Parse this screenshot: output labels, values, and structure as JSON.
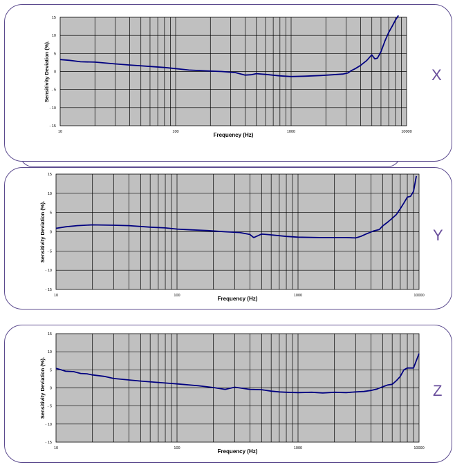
{
  "colors": {
    "panel_border": "#5b4a8e",
    "plot_bg": "#c0c0c0",
    "curve": "#000080",
    "letter": "#6a4f9c"
  },
  "chart_data": [
    {
      "type": "line",
      "panel_label": "X",
      "xlabel": "Frequency (Hz)",
      "ylabel": "Sensitivity Deviation (%).",
      "xscale": "log",
      "xlim": [
        10,
        10000
      ],
      "ylim": [
        -15,
        15
      ],
      "x_ticks": [
        "10",
        "100",
        "1000",
        "10000"
      ],
      "y_ticks": [
        "15",
        "10",
        "5",
        "0",
        "- 5",
        "- 10",
        "- 15"
      ],
      "grid": true,
      "series": [
        {
          "x": [
            10,
            12,
            15,
            20,
            30,
            40,
            60,
            80,
            100,
            130,
            180,
            250,
            330,
            400,
            450,
            500,
            600,
            800,
            1000,
            1300,
            1800,
            2300,
            2800,
            3100,
            3300,
            3600,
            4000,
            4500,
            5000,
            5300,
            5600,
            6000,
            6500,
            7000,
            7500,
            8000,
            8500
          ],
          "y": [
            3.3,
            3.1,
            2.7,
            2.6,
            2.1,
            1.8,
            1.4,
            1.1,
            0.8,
            0.4,
            0.2,
            0.0,
            -0.3,
            -1.0,
            -0.9,
            -0.6,
            -0.8,
            -1.2,
            -1.4,
            -1.3,
            -1.1,
            -0.9,
            -0.7,
            -0.4,
            0.2,
            0.8,
            1.7,
            3.0,
            4.6,
            3.5,
            3.7,
            5.5,
            8.5,
            10.8,
            12.5,
            14.2,
            15.5
          ]
        }
      ]
    },
    {
      "type": "line",
      "panel_label": "Y",
      "xlabel": "Frequency (Hz)",
      "ylabel": "Sensitivity Deviation (%).",
      "xscale": "log",
      "xlim": [
        10,
        10000
      ],
      "ylim": [
        -15,
        15
      ],
      "x_ticks": [
        "10",
        "100",
        "1000",
        "10000"
      ],
      "y_ticks": [
        "15",
        "10",
        "5",
        "0",
        "- 5",
        "- 10",
        "- 15"
      ],
      "grid": true,
      "series": [
        {
          "x": [
            10,
            12,
            15,
            20,
            30,
            40,
            60,
            80,
            100,
            130,
            180,
            250,
            330,
            400,
            430,
            500,
            600,
            800,
            1000,
            1500,
            2000,
            2500,
            3000,
            3300,
            3700,
            4200,
            4700,
            5000,
            5500,
            6000,
            6500,
            7000,
            7500,
            8000,
            8500,
            9000,
            9500
          ],
          "y": [
            0.9,
            1.3,
            1.6,
            1.8,
            1.7,
            1.6,
            1.2,
            1.0,
            0.7,
            0.5,
            0.3,
            0.0,
            -0.2,
            -0.7,
            -1.5,
            -0.6,
            -0.8,
            -1.2,
            -1.4,
            -1.5,
            -1.5,
            -1.5,
            -1.6,
            -1.2,
            -0.5,
            0.2,
            0.6,
            1.5,
            2.5,
            3.5,
            4.5,
            6.0,
            7.5,
            9.0,
            9.2,
            10.5,
            14.5
          ]
        }
      ]
    },
    {
      "type": "line",
      "panel_label": "Z",
      "xlabel": "Frequency (Hz)",
      "ylabel": "Sensitivity Deviation (%).",
      "xscale": "log",
      "xlim": [
        10,
        10000
      ],
      "ylim": [
        -15,
        15
      ],
      "x_ticks": [
        "10",
        "100",
        "1000",
        "10000"
      ],
      "y_ticks": [
        "15",
        "10",
        "5",
        "0",
        "- 5",
        "- 10",
        "- 15"
      ],
      "grid": true,
      "series": [
        {
          "x": [
            10,
            11,
            12,
            14,
            16,
            18,
            20,
            25,
            30,
            40,
            50,
            70,
            100,
            150,
            200,
            250,
            300,
            400,
            500,
            600,
            700,
            800,
            1000,
            1300,
            1600,
            2000,
            2500,
            3000,
            3500,
            4000,
            4500,
            5000,
            5500,
            6000,
            6500,
            7000,
            7500,
            8000,
            9000,
            10000
          ],
          "y": [
            5.4,
            5.0,
            4.6,
            4.5,
            4.0,
            3.9,
            3.6,
            3.2,
            2.6,
            2.2,
            1.9,
            1.5,
            1.1,
            0.6,
            0.1,
            -0.4,
            0.2,
            -0.4,
            -0.5,
            -0.9,
            -1.1,
            -1.2,
            -1.3,
            -1.2,
            -1.4,
            -1.2,
            -1.3,
            -1.1,
            -1.0,
            -0.7,
            -0.3,
            0.3,
            0.8,
            1.0,
            2.0,
            3.2,
            5.0,
            5.5,
            5.5,
            9.5
          ]
        }
      ]
    }
  ]
}
